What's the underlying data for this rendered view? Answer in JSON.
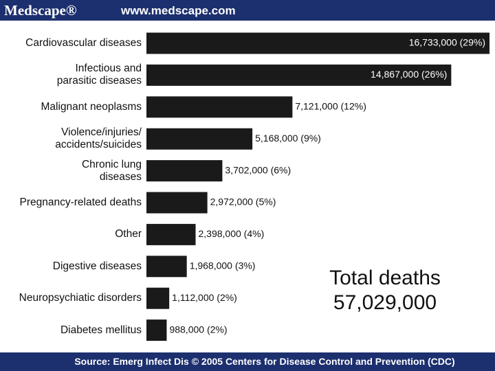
{
  "header": {
    "logo": "Medscape®",
    "url": "www.medscape.com"
  },
  "chart_data": {
    "type": "bar",
    "orientation": "horizontal",
    "color": "#1a1a1a",
    "categories": [
      "Cardiovascular diseases",
      "Infectious and\nparasitic diseases",
      "Malignant neoplasms",
      "Violence/injuries/\naccidents/suicides",
      "Chronic lung\ndiseases",
      "Pregnancy-related deaths",
      "Other",
      "Digestive diseases",
      "Neuropsychiatic disorders",
      "Diabetes mellitus"
    ],
    "values": [
      16733000,
      14867000,
      7121000,
      5168000,
      3702000,
      2972000,
      2398000,
      1968000,
      1112000,
      988000
    ],
    "value_labels": [
      "16,733,000 (29%)",
      "14,867,000 (26%)",
      "7,121,000 (12%)",
      "5,168,000 (9%)",
      "3,702,000 (6%)",
      "2,972,000 (5%)",
      "2,398,000 (4%)",
      "1,968,000 (3%)",
      "1,112,000 (2%)",
      "988,000 (2%)"
    ],
    "annotation": [
      "Total deaths",
      "57,029,000"
    ]
  },
  "footer": {
    "source": "Source: Emerg Infect Dis © 2005 Centers for Disease Control and Prevention (CDC)"
  }
}
